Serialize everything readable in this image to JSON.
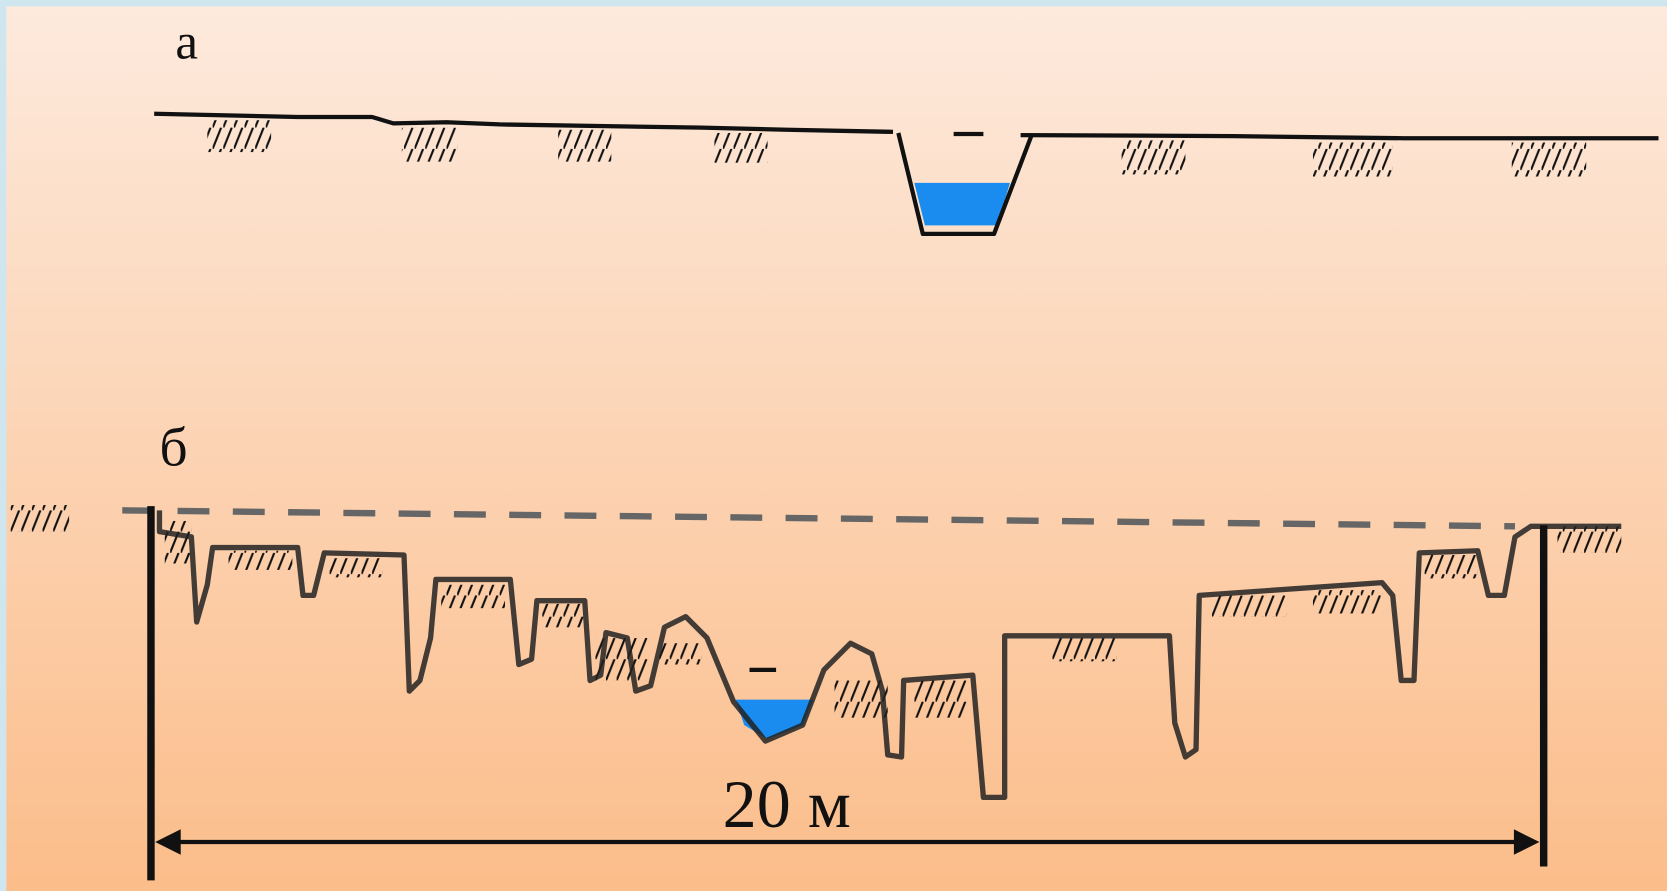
{
  "panels": [
    {
      "label": "а"
    },
    {
      "label": "б",
      "dimension": "20 м"
    }
  ]
}
